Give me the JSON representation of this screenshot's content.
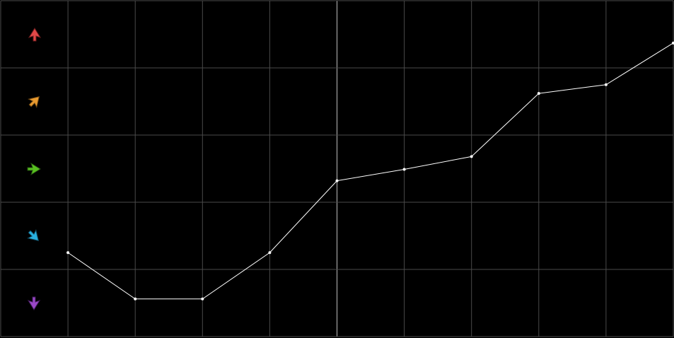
{
  "chart_data": {
    "type": "line",
    "x": [
      1,
      2,
      3,
      4,
      5,
      6,
      7,
      8,
      9,
      10
    ],
    "series": [
      {
        "color": "#ffffff",
        "values": [
          1.25,
          0.56,
          0.56,
          1.25,
          2.32,
          2.49,
          2.68,
          3.62,
          3.75,
          4.37
        ]
      }
    ],
    "xlim": [
      0,
      10
    ],
    "xticks": [
      0,
      1,
      2,
      3,
      4,
      5,
      6,
      7,
      8,
      9,
      10
    ],
    "ylim": [
      0,
      5
    ],
    "yticks": [
      0,
      1,
      2,
      3,
      4,
      5
    ],
    "grid": true,
    "grid_color": "#4a4a4a",
    "highlight_x": 5,
    "highlight_color": "#bdbdbd",
    "background": "#000000"
  }
}
